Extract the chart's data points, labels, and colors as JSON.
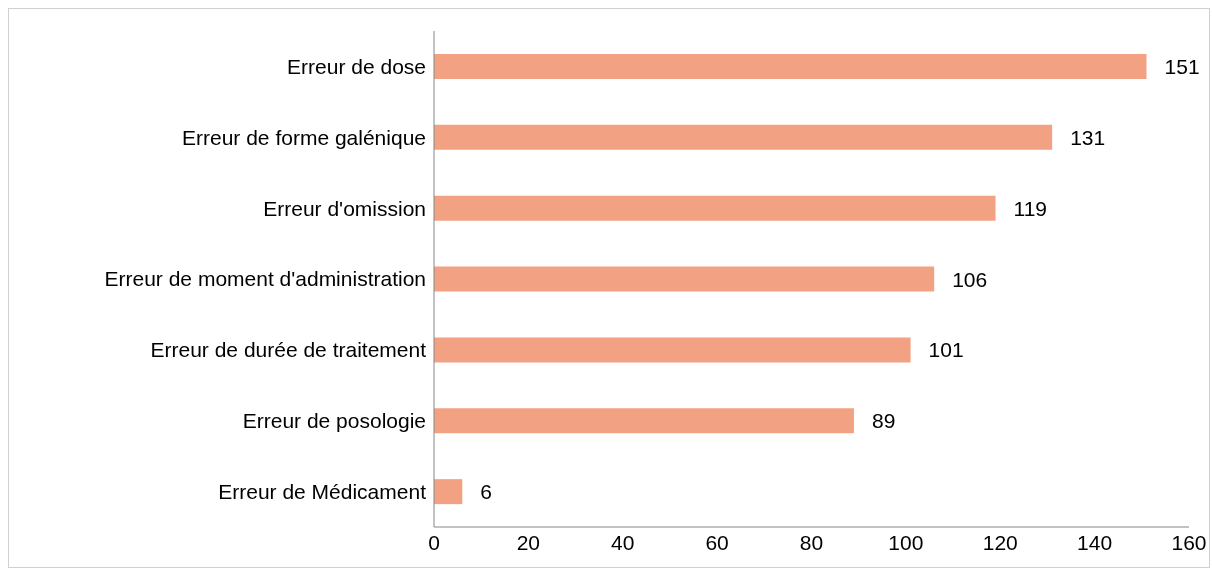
{
  "chart_data": {
    "type": "bar",
    "orientation": "horizontal",
    "categories": [
      "Erreur de dose",
      "Erreur de forme galénique",
      "Erreur d'omission",
      "Erreur de moment d'administration",
      "Erreur de durée de traitement",
      "Erreur de posologie",
      "Erreur de Médicament"
    ],
    "values": [
      151,
      131,
      119,
      106,
      101,
      89,
      6
    ],
    "color": "#f2a283",
    "xlim": [
      0,
      160
    ],
    "xticks": [
      0,
      20,
      40,
      60,
      80,
      100,
      120,
      140,
      160
    ],
    "data_labels": true,
    "grid": false,
    "legend": false
  }
}
